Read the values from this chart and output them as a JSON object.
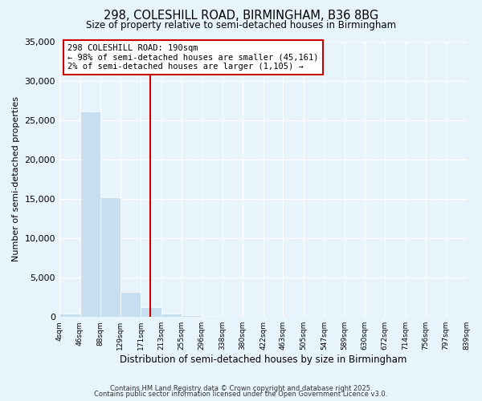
{
  "title": "298, COLESHILL ROAD, BIRMINGHAM, B36 8BG",
  "subtitle": "Size of property relative to semi-detached houses in Birmingham",
  "xlabel": "Distribution of semi-detached houses by size in Birmingham",
  "ylabel": "Number of semi-detached properties",
  "bin_edges": [
    4,
    46,
    88,
    129,
    171,
    213,
    255,
    296,
    338,
    380,
    422,
    463,
    505,
    547,
    589,
    630,
    672,
    714,
    756,
    797,
    839
  ],
  "bin_counts": [
    400,
    26100,
    15200,
    3200,
    1200,
    400,
    200,
    100,
    50,
    30,
    20,
    15,
    10,
    8,
    6,
    5,
    4,
    3,
    2,
    1
  ],
  "bar_color": "#c5dff0",
  "bar_edgecolor": "#ffffff",
  "vline_x": 190,
  "vline_color": "#cc0000",
  "annotation_text": "298 COLESHILL ROAD: 190sqm\n← 98% of semi-detached houses are smaller (45,161)\n2% of semi-detached houses are larger (1,105) →",
  "annotation_box_edgecolor": "#cc0000",
  "annotation_box_facecolor": "#ffffff",
  "ylim": [
    0,
    35000
  ],
  "yticks": [
    0,
    5000,
    10000,
    15000,
    20000,
    25000,
    30000,
    35000
  ],
  "xtick_labels": [
    "4sqm",
    "46sqm",
    "88sqm",
    "129sqm",
    "171sqm",
    "213sqm",
    "255sqm",
    "296sqm",
    "338sqm",
    "380sqm",
    "422sqm",
    "463sqm",
    "505sqm",
    "547sqm",
    "589sqm",
    "630sqm",
    "672sqm",
    "714sqm",
    "756sqm",
    "797sqm",
    "839sqm"
  ],
  "background_color": "#e8f4fc",
  "grid_color": "#ffffff",
  "footer_line1": "Contains HM Land Registry data © Crown copyright and database right 2025.",
  "footer_line2": "Contains public sector information licensed under the Open Government Licence v3.0."
}
